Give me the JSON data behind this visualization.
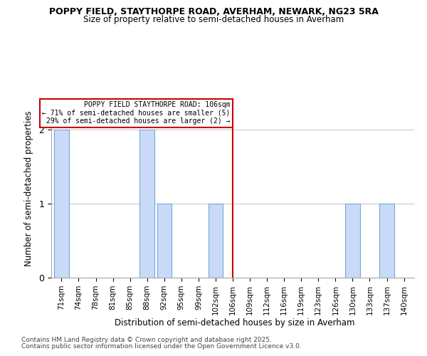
{
  "title1": "POPPY FIELD, STAYTHORPE ROAD, AVERHAM, NEWARK, NG23 5RA",
  "title2": "Size of property relative to semi-detached houses in Averham",
  "xlabel": "Distribution of semi-detached houses by size in Averham",
  "ylabel": "Number of semi-detached properties",
  "categories": [
    "71sqm",
    "74sqm",
    "78sqm",
    "81sqm",
    "85sqm",
    "88sqm",
    "92sqm",
    "95sqm",
    "99sqm",
    "102sqm",
    "106sqm",
    "109sqm",
    "112sqm",
    "116sqm",
    "119sqm",
    "123sqm",
    "126sqm",
    "130sqm",
    "133sqm",
    "137sqm",
    "140sqm"
  ],
  "values": [
    2,
    0,
    0,
    0,
    0,
    2,
    1,
    0,
    0,
    1,
    0,
    0,
    0,
    0,
    0,
    0,
    0,
    1,
    0,
    1,
    0
  ],
  "bar_color": "#c9daf8",
  "bar_edge_color": "#6fa8dc",
  "subject_line_index": 10,
  "annotation_title": "POPPY FIELD STAYTHORPE ROAD: 106sqm",
  "annotation_line1": "← 71% of semi-detached houses are smaller (5)",
  "annotation_line2": "29% of semi-detached houses are larger (2) →",
  "annotation_box_color": "#ffffff",
  "annotation_box_edge": "#cc0000",
  "vline_color": "#cc0000",
  "ylim": [
    0,
    2.4
  ],
  "yticks": [
    0,
    1,
    2
  ],
  "bg_color": "#ffffff",
  "grid_color": "#cccccc",
  "footnote1": "Contains HM Land Registry data © Crown copyright and database right 2025.",
  "footnote2": "Contains public sector information licensed under the Open Government Licence v3.0."
}
